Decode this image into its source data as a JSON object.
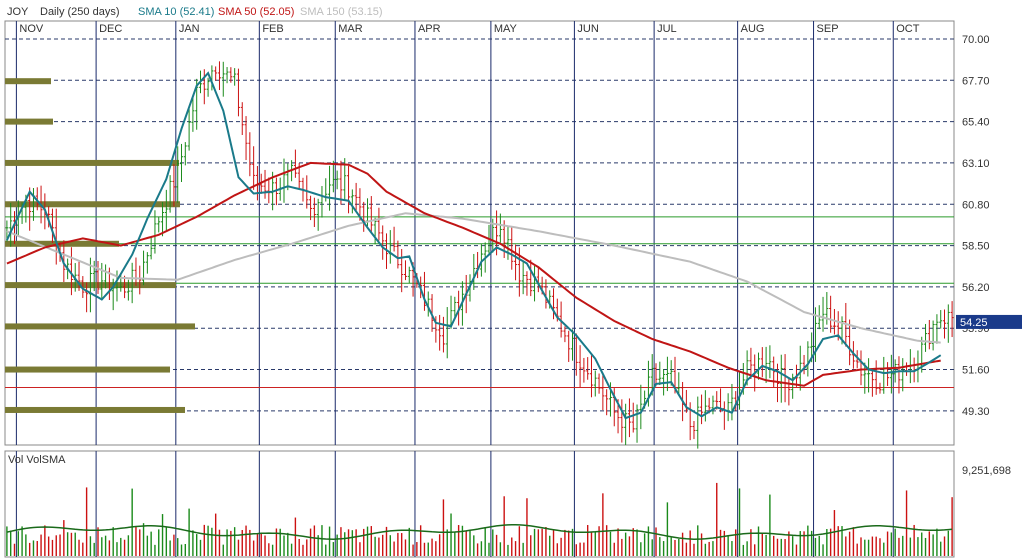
{
  "header": {
    "symbol": "JOY",
    "period": "Daily (250 days)",
    "sma10": "SMA 10 (52.41)",
    "sma50": "SMA 50 (52.05)",
    "sma150": "SMA 150 (53.15)"
  },
  "volume_panel": {
    "title": "Vol VolSMA",
    "max_label": "9,251,698"
  },
  "colors": {
    "up": "#1a8a1a",
    "down": "#cc1111",
    "sma10": "#1a7a8a",
    "sma50": "#c01515",
    "sma150": "#bdbdbd",
    "volume_profile": "#7a7a34",
    "last_price_badge": "#1a3a8a",
    "grid_vertical": "#1a2a6a",
    "resistance_green": "#2a9a2a",
    "support_red": "#cc2222"
  },
  "chart_data": {
    "type": "line",
    "months": [
      "NOV",
      "DEC",
      "JAN",
      "FEB",
      "MAR",
      "APR",
      "MAY",
      "JUN",
      "JUL",
      "AUG",
      "SEP",
      "OCT"
    ],
    "y_ticks": [
      "70.00",
      "67.70",
      "65.40",
      "63.10",
      "60.80",
      "58.50",
      "56.20",
      "53.90",
      "51.60",
      "49.30"
    ],
    "ylim": [
      47.4,
      71.0
    ],
    "last_price": "54.25",
    "horizontal_levels": {
      "green": [
        60.1,
        58.6,
        56.4
      ],
      "red": [
        50.6
      ]
    },
    "close_anchors": [
      [
        0,
        59.5
      ],
      [
        5,
        61.0
      ],
      [
        10,
        60.5
      ],
      [
        15,
        57.5
      ],
      [
        20,
        56.3
      ],
      [
        25,
        56.6
      ],
      [
        30,
        56.0
      ],
      [
        35,
        56.9
      ],
      [
        40,
        60.0
      ],
      [
        45,
        62.6
      ],
      [
        50,
        67.0
      ],
      [
        55,
        68.6
      ],
      [
        60,
        67.5
      ],
      [
        65,
        62.0
      ],
      [
        70,
        61.7
      ],
      [
        75,
        62.4
      ],
      [
        80,
        60.5
      ],
      [
        85,
        62.0
      ],
      [
        90,
        61.8
      ],
      [
        95,
        60.0
      ],
      [
        100,
        58.5
      ],
      [
        105,
        57.2
      ],
      [
        110,
        55.5
      ],
      [
        115,
        53.6
      ],
      [
        120,
        55.8
      ],
      [
        125,
        58.2
      ],
      [
        130,
        59.8
      ],
      [
        135,
        57.0
      ],
      [
        140,
        56.3
      ],
      [
        145,
        54.4
      ],
      [
        150,
        52.5
      ],
      [
        155,
        51.0
      ],
      [
        160,
        49.2
      ],
      [
        165,
        48.3
      ],
      [
        170,
        51.2
      ],
      [
        175,
        51.0
      ],
      [
        180,
        48.5
      ],
      [
        185,
        49.6
      ],
      [
        190,
        49.3
      ],
      [
        195,
        51.5
      ],
      [
        200,
        52.3
      ],
      [
        205,
        50.8
      ],
      [
        210,
        52.0
      ],
      [
        215,
        54.8
      ],
      [
        220,
        53.8
      ],
      [
        225,
        51.6
      ],
      [
        230,
        51.0
      ],
      [
        235,
        51.5
      ],
      [
        240,
        52.3
      ],
      [
        245,
        54.5
      ]
    ],
    "sma10_anchors": [
      [
        0,
        58.8
      ],
      [
        6,
        61.5
      ],
      [
        10,
        60.5
      ],
      [
        15,
        57.5
      ],
      [
        20,
        56.1
      ],
      [
        25,
        55.5
      ],
      [
        28,
        56.2
      ],
      [
        33,
        58.0
      ],
      [
        37,
        60.0
      ],
      [
        42,
        62.2
      ],
      [
        46,
        65.0
      ],
      [
        50,
        67.4
      ],
      [
        53,
        68.1
      ],
      [
        57,
        66.0
      ],
      [
        61,
        62.3
      ],
      [
        65,
        61.4
      ],
      [
        70,
        61.5
      ],
      [
        74,
        61.8
      ],
      [
        78,
        61.6
      ],
      [
        84,
        61.2
      ],
      [
        90,
        61.0
      ],
      [
        95,
        59.5
      ],
      [
        99,
        58.4
      ],
      [
        103,
        57.8
      ],
      [
        106,
        57.9
      ],
      [
        110,
        55.5
      ],
      [
        113,
        54.2
      ],
      [
        117,
        54.0
      ],
      [
        121,
        55.8
      ],
      [
        125,
        57.6
      ],
      [
        129,
        58.4
      ],
      [
        133,
        58.0
      ],
      [
        137,
        57.5
      ],
      [
        141,
        56.0
      ],
      [
        145,
        54.5
      ],
      [
        150,
        53.5
      ],
      [
        155,
        52.2
      ],
      [
        159,
        50.5
      ],
      [
        163,
        48.9
      ],
      [
        167,
        49.2
      ],
      [
        171,
        50.8
      ],
      [
        175,
        50.9
      ],
      [
        179,
        49.5
      ],
      [
        183,
        49.0
      ],
      [
        187,
        49.5
      ],
      [
        191,
        49.2
      ],
      [
        195,
        51.0
      ],
      [
        199,
        51.8
      ],
      [
        203,
        51.5
      ],
      [
        207,
        51.0
      ],
      [
        211,
        51.9
      ],
      [
        215,
        53.3
      ],
      [
        219,
        53.5
      ],
      [
        223,
        52.5
      ],
      [
        227,
        51.6
      ],
      [
        231,
        51.4
      ],
      [
        235,
        51.5
      ],
      [
        239,
        51.5
      ],
      [
        243,
        52.0
      ],
      [
        246,
        52.4
      ]
    ],
    "sma50_anchors": [
      [
        0,
        57.5
      ],
      [
        10,
        58.4
      ],
      [
        20,
        58.9
      ],
      [
        30,
        58.5
      ],
      [
        40,
        59.1
      ],
      [
        50,
        60.1
      ],
      [
        60,
        61.3
      ],
      [
        70,
        62.3
      ],
      [
        80,
        63.1
      ],
      [
        90,
        63.0
      ],
      [
        95,
        62.5
      ],
      [
        100,
        61.5
      ],
      [
        110,
        60.3
      ],
      [
        120,
        59.5
      ],
      [
        130,
        58.6
      ],
      [
        140,
        57.3
      ],
      [
        150,
        55.6
      ],
      [
        160,
        54.3
      ],
      [
        170,
        53.3
      ],
      [
        180,
        52.6
      ],
      [
        190,
        51.7
      ],
      [
        200,
        51.0
      ],
      [
        210,
        50.7
      ],
      [
        215,
        51.3
      ],
      [
        225,
        51.6
      ],
      [
        235,
        51.7
      ],
      [
        246,
        52.1
      ]
    ],
    "sma150_anchors": [
      [
        0,
        59.3
      ],
      [
        15,
        58.0
      ],
      [
        30,
        56.7
      ],
      [
        45,
        56.6
      ],
      [
        60,
        57.7
      ],
      [
        75,
        58.6
      ],
      [
        90,
        59.6
      ],
      [
        105,
        60.3
      ],
      [
        120,
        60.0
      ],
      [
        140,
        59.3
      ],
      [
        160,
        58.5
      ],
      [
        180,
        57.6
      ],
      [
        195,
        56.5
      ],
      [
        210,
        54.8
      ],
      [
        225,
        53.9
      ],
      [
        240,
        53.2
      ],
      [
        246,
        53.1
      ]
    ],
    "volume_profile": [
      {
        "center": 67.65,
        "width": 46
      },
      {
        "center": 65.4,
        "width": 48
      },
      {
        "center": 63.1,
        "width": 174
      },
      {
        "center": 60.8,
        "width": 175
      },
      {
        "center": 58.6,
        "width": 114
      },
      {
        "center": 56.3,
        "width": 171
      },
      {
        "center": 54.0,
        "width": 190
      },
      {
        "center": 51.6,
        "width": 165
      },
      {
        "center": 49.35,
        "width": 180
      }
    ]
  }
}
